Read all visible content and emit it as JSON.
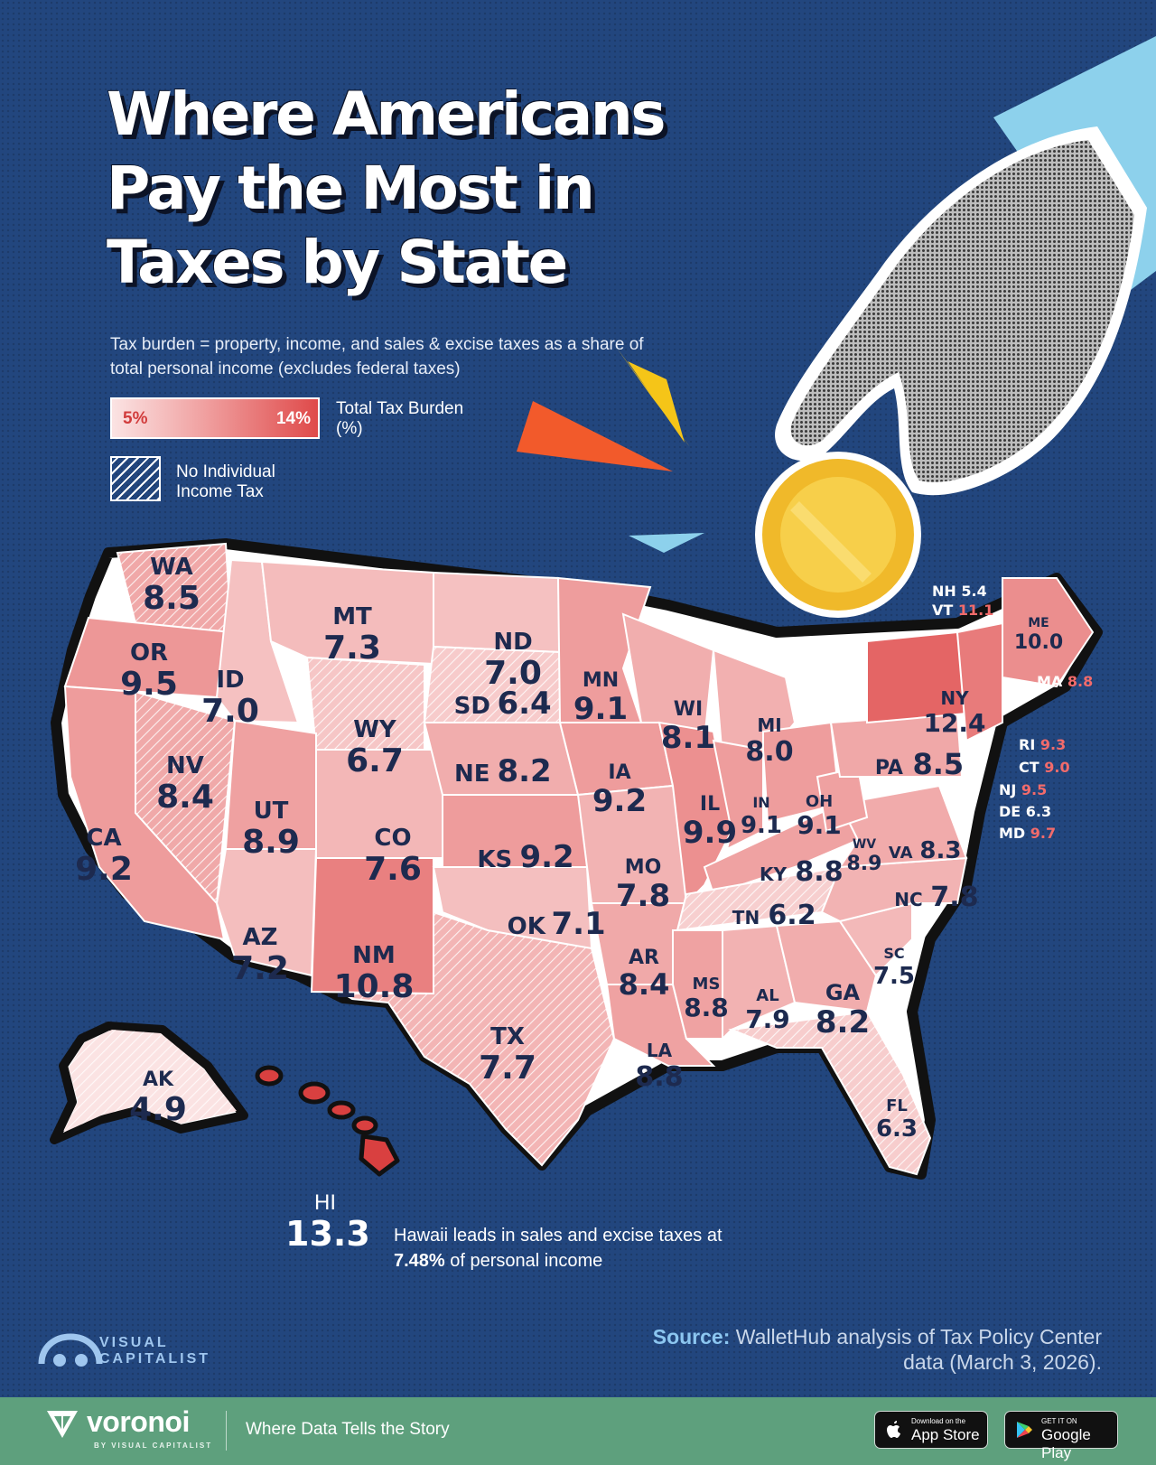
{
  "title": {
    "line1": "Where Americans",
    "line2": "Pay the Most in",
    "line3": "Taxes by State"
  },
  "subtitle": "Tax burden = property, income, and sales & excise taxes as a share of total personal income (excludes federal taxes)",
  "legend": {
    "min_label": "5%",
    "max_label": "14%",
    "scale_title": "Total Tax Burden (%)",
    "hatch_label": "No Individual Income Tax",
    "color_min": "#fbe3e3",
    "color_max": "#df4a4a"
  },
  "map_data": {
    "metric": "Total Tax Burden (%)",
    "states": [
      {
        "abbr": "WA",
        "value": "8.5",
        "no_income_tax": true
      },
      {
        "abbr": "OR",
        "value": "9.5",
        "no_income_tax": false
      },
      {
        "abbr": "CA",
        "value": "9.2",
        "no_income_tax": false
      },
      {
        "abbr": "ID",
        "value": "7.0",
        "no_income_tax": false
      },
      {
        "abbr": "NV",
        "value": "8.4",
        "no_income_tax": true
      },
      {
        "abbr": "MT",
        "value": "7.3",
        "no_income_tax": false
      },
      {
        "abbr": "WY",
        "value": "6.7",
        "no_income_tax": true
      },
      {
        "abbr": "UT",
        "value": "8.9",
        "no_income_tax": false
      },
      {
        "abbr": "AZ",
        "value": "7.2",
        "no_income_tax": false
      },
      {
        "abbr": "CO",
        "value": "7.6",
        "no_income_tax": false
      },
      {
        "abbr": "NM",
        "value": "10.8",
        "no_income_tax": false
      },
      {
        "abbr": "ND",
        "value": "7.0",
        "no_income_tax": false
      },
      {
        "abbr": "SD",
        "value": "6.4",
        "no_income_tax": true
      },
      {
        "abbr": "NE",
        "value": "8.2",
        "no_income_tax": false
      },
      {
        "abbr": "KS",
        "value": "9.2",
        "no_income_tax": false
      },
      {
        "abbr": "OK",
        "value": "7.1",
        "no_income_tax": false
      },
      {
        "abbr": "TX",
        "value": "7.7",
        "no_income_tax": true
      },
      {
        "abbr": "MN",
        "value": "9.1",
        "no_income_tax": false
      },
      {
        "abbr": "IA",
        "value": "9.2",
        "no_income_tax": false
      },
      {
        "abbr": "MO",
        "value": "7.8",
        "no_income_tax": false
      },
      {
        "abbr": "AR",
        "value": "8.4",
        "no_income_tax": false
      },
      {
        "abbr": "LA",
        "value": "8.8",
        "no_income_tax": false
      },
      {
        "abbr": "WI",
        "value": "8.1",
        "no_income_tax": false
      },
      {
        "abbr": "IL",
        "value": "9.9",
        "no_income_tax": false
      },
      {
        "abbr": "MI",
        "value": "8.0",
        "no_income_tax": false
      },
      {
        "abbr": "IN",
        "value": "9.1",
        "no_income_tax": false
      },
      {
        "abbr": "OH",
        "value": "9.1",
        "no_income_tax": false
      },
      {
        "abbr": "KY",
        "value": "8.8",
        "no_income_tax": false
      },
      {
        "abbr": "TN",
        "value": "6.2",
        "no_income_tax": true
      },
      {
        "abbr": "MS",
        "value": "8.8",
        "no_income_tax": false
      },
      {
        "abbr": "AL",
        "value": "7.9",
        "no_income_tax": false
      },
      {
        "abbr": "GA",
        "value": "8.2",
        "no_income_tax": false
      },
      {
        "abbr": "FL",
        "value": "6.3",
        "no_income_tax": true
      },
      {
        "abbr": "SC",
        "value": "7.5",
        "no_income_tax": false
      },
      {
        "abbr": "NC",
        "value": "7.8",
        "no_income_tax": false
      },
      {
        "abbr": "VA",
        "value": "8.3",
        "no_income_tax": false
      },
      {
        "abbr": "WV",
        "value": "8.9",
        "no_income_tax": false
      },
      {
        "abbr": "PA",
        "value": "8.5",
        "no_income_tax": false
      },
      {
        "abbr": "NY",
        "value": "12.4",
        "no_income_tax": false
      },
      {
        "abbr": "ME",
        "value": "10.0",
        "no_income_tax": false
      },
      {
        "abbr": "AK",
        "value": "4.9",
        "no_income_tax": true
      },
      {
        "abbr": "HI",
        "value": "13.3",
        "no_income_tax": false
      },
      {
        "abbr": "NH",
        "value": "5.4",
        "no_income_tax": true
      },
      {
        "abbr": "VT",
        "value": "11.1",
        "no_income_tax": false
      },
      {
        "abbr": "MA",
        "value": "8.8",
        "no_income_tax": false
      },
      {
        "abbr": "RI",
        "value": "9.3",
        "no_income_tax": false
      },
      {
        "abbr": "CT",
        "value": "9.0",
        "no_income_tax": false
      },
      {
        "abbr": "NJ",
        "value": "9.5",
        "no_income_tax": false
      },
      {
        "abbr": "DE",
        "value": "6.3",
        "no_income_tax": false
      },
      {
        "abbr": "MD",
        "value": "9.7",
        "no_income_tax": false
      }
    ]
  },
  "hawaii_callout": {
    "abbr": "HI",
    "value": "13.3",
    "note_pre": "Hawaii leads in sales and excise taxes at ",
    "note_highlight": "7.48%",
    "note_post": " of personal income"
  },
  "source": {
    "label": "Source:",
    "text": "WalletHub analysis of Tax Policy Center data (March 3, 2026)."
  },
  "brand": {
    "vc_line1": "VISUAL",
    "vc_line2": "CAPITALIST",
    "voronoi_name": "voronoi",
    "voronoi_sub": "BY VISUAL CAPITALIST",
    "tagline": "Where Data Tells the Story"
  },
  "stores": {
    "apple_small": "Download on the",
    "apple_big": "App Store",
    "google_small": "GET IT ON",
    "google_big": "Google Play"
  },
  "colors": {
    "background": "#22467e",
    "footer": "#5ea07d",
    "label": "#1d2a4f",
    "accent_red": "#df4a4a"
  }
}
